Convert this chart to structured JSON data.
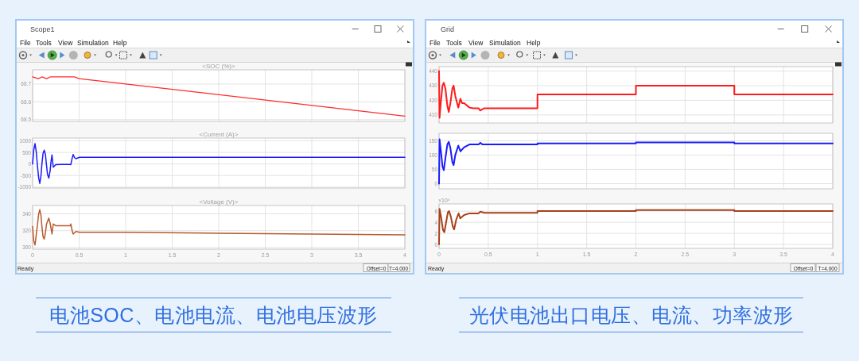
{
  "chart_data": [
    {
      "type": "line",
      "title": "<SOC (%)>",
      "x": [
        0,
        0.06,
        0.1,
        0.15,
        0.19,
        0.45,
        0.5,
        4
      ],
      "series": [
        {
          "color": "#ff2a2a",
          "values": [
            68.74,
            68.73,
            68.74,
            68.73,
            68.74,
            68.74,
            68.73,
            68.52
          ]
        }
      ],
      "xlim": [
        0,
        4
      ],
      "ylim": [
        68.49,
        68.78
      ],
      "xticks": [
        0,
        0.5,
        1,
        1.5,
        2,
        2.5,
        3,
        3.5,
        4
      ],
      "yticks": [
        68.5,
        68.6,
        68.7
      ],
      "grid": true,
      "tick_labels": "y",
      "annotations": [
        "Scope1",
        "File",
        "Tools",
        "View",
        "Simulation",
        "Help"
      ]
    },
    {
      "type": "line",
      "title": "<Current (A)>",
      "x": [
        0,
        0.012,
        0.026,
        0.04,
        0.05,
        0.065,
        0.077,
        0.09,
        0.1,
        0.112,
        0.125,
        0.138,
        0.148,
        0.16,
        0.174,
        0.188,
        0.198,
        0.208,
        0.222,
        0.248,
        0.3,
        0.404,
        0.41,
        0.425,
        0.436,
        0.45,
        0.465,
        0.504,
        4
      ],
      "series": [
        {
          "color": "#1a1aff",
          "values": [
            0,
            600,
            880,
            500,
            0,
            -600,
            -840,
            -500,
            0,
            450,
            600,
            400,
            0,
            -450,
            -610,
            -300,
            100,
            390,
            -140,
            -30,
            -20,
            -20,
            -30,
            250,
            410,
            280,
            230,
            290,
            290
          ]
        }
      ],
      "xlim": [
        0,
        4
      ],
      "ylim": [
        -1040,
        1120
      ],
      "xticks": [
        0,
        0.5,
        1,
        1.5,
        2,
        2.5,
        3,
        3.5,
        4
      ],
      "yticks": [
        -1000,
        -500,
        0,
        500,
        1000
      ],
      "grid": true,
      "tick_labels": "y"
    },
    {
      "type": "line",
      "title": "<Voltage (V)>",
      "x": [
        0,
        0.012,
        0.026,
        0.05,
        0.065,
        0.077,
        0.09,
        0.1,
        0.112,
        0.125,
        0.138,
        0.15,
        0.174,
        0.19,
        0.208,
        0.222,
        0.248,
        0.405,
        0.41,
        0.425,
        0.436,
        0.465,
        0.504,
        1,
        2,
        3,
        4
      ],
      "series": [
        {
          "color": "#b85a2e",
          "values": [
            325,
            308,
            303,
            325,
            340,
            345,
            338,
            325,
            313,
            310,
            318,
            328,
            335,
            328,
            316,
            328,
            326,
            326,
            328,
            320,
            316,
            319,
            318,
            318,
            317,
            316,
            315
          ]
        }
      ],
      "xlim": [
        0,
        4
      ],
      "ylim": [
        298,
        350
      ],
      "xticks": [
        0,
        0.5,
        1,
        1.5,
        2,
        2.5,
        3,
        3.5,
        4
      ],
      "yticks": [
        300,
        320,
        340
      ],
      "grid": true,
      "annotations": [
        "Ready",
        "Offset=0",
        "T=4.000",
        "电池SOC、电池电流、电池电压波形"
      ]
    },
    {
      "type": "line",
      "x": [
        0,
        0.005,
        0.02,
        0.035,
        0.048,
        0.065,
        0.085,
        0.099,
        0.115,
        0.135,
        0.148,
        0.165,
        0.196,
        0.217,
        0.235,
        0.255,
        0.309,
        0.35,
        0.403,
        0.417,
        0.457,
        1,
        1,
        2,
        2,
        3,
        3,
        4
      ],
      "series": [
        {
          "color": "#ff1a1a",
          "values": [
            440,
            408,
            420,
            430,
            432,
            428,
            416,
            412,
            418,
            428,
            430,
            423,
            415,
            421,
            418,
            418,
            415,
            414.5,
            414.5,
            413,
            414.5,
            414.5,
            424,
            424,
            430,
            430,
            424,
            424
          ]
        }
      ],
      "xlim": [
        0,
        4
      ],
      "ylim": [
        404.5,
        443
      ],
      "xticks": [
        0,
        0.5,
        1,
        1.5,
        2,
        2.5,
        3,
        3.5,
        4
      ],
      "yticks": [
        410,
        420,
        430,
        440
      ],
      "grid": true,
      "tick_labels": "y",
      "annotations": [
        "Grid",
        "File",
        "Tools",
        "View",
        "Simulation",
        "Help"
      ]
    },
    {
      "type": "line",
      "x": [
        0,
        0.005,
        0.02,
        0.035,
        0.048,
        0.065,
        0.085,
        0.099,
        0.115,
        0.135,
        0.148,
        0.165,
        0.196,
        0.217,
        0.255,
        0.309,
        0.403,
        0.42,
        0.44,
        1,
        1,
        2,
        2,
        3,
        3,
        4
      ],
      "series": [
        {
          "color": "#1a1aff",
          "values": [
            0,
            155,
            110,
            60,
            47,
            90,
            138,
            146,
            125,
            75,
            65,
            100,
            133,
            113,
            127,
            137,
            137,
            143,
            137,
            137,
            141,
            141,
            144,
            144,
            141,
            141
          ]
        }
      ],
      "xlim": [
        0,
        4
      ],
      "ylim": [
        -18,
        176
      ],
      "xticks": [
        0,
        0.5,
        1,
        1.5,
        2,
        2.5,
        3,
        3.5,
        4
      ],
      "yticks": [
        0,
        50,
        100,
        150
      ],
      "grid": true,
      "tick_labels": "y"
    },
    {
      "type": "line",
      "ylabel": "×10⁴",
      "x": [
        0,
        0.005,
        0.02,
        0.04,
        0.054,
        0.07,
        0.09,
        0.102,
        0.12,
        0.14,
        0.153,
        0.175,
        0.199,
        0.215,
        0.255,
        0.309,
        0.4,
        0.42,
        0.46,
        1,
        1,
        2,
        2,
        3,
        3,
        4
      ],
      "series": [
        {
          "color": "#a8401a",
          "values": [
            0,
            6.4,
            5,
            2.6,
            2.2,
            3.8,
            5.8,
            6,
            5,
            3.2,
            2.7,
            4.5,
            5.6,
            4.7,
            5.3,
            5.6,
            5.6,
            5.9,
            5.7,
            5.7,
            6,
            6,
            6.2,
            6.2,
            6,
            6
          ]
        }
      ],
      "xlim": [
        0,
        4
      ],
      "ylim": [
        -0.7,
        7.3
      ],
      "xticks": [
        0,
        0.5,
        1,
        1.5,
        2,
        2.5,
        3,
        3.5,
        4
      ],
      "yticks": [
        0,
        2,
        4,
        6
      ],
      "grid": true,
      "annotations": [
        "Ready",
        "Offset=0",
        "T=4.000",
        "光伏电池出口电压、电流、功率波形"
      ]
    }
  ]
}
